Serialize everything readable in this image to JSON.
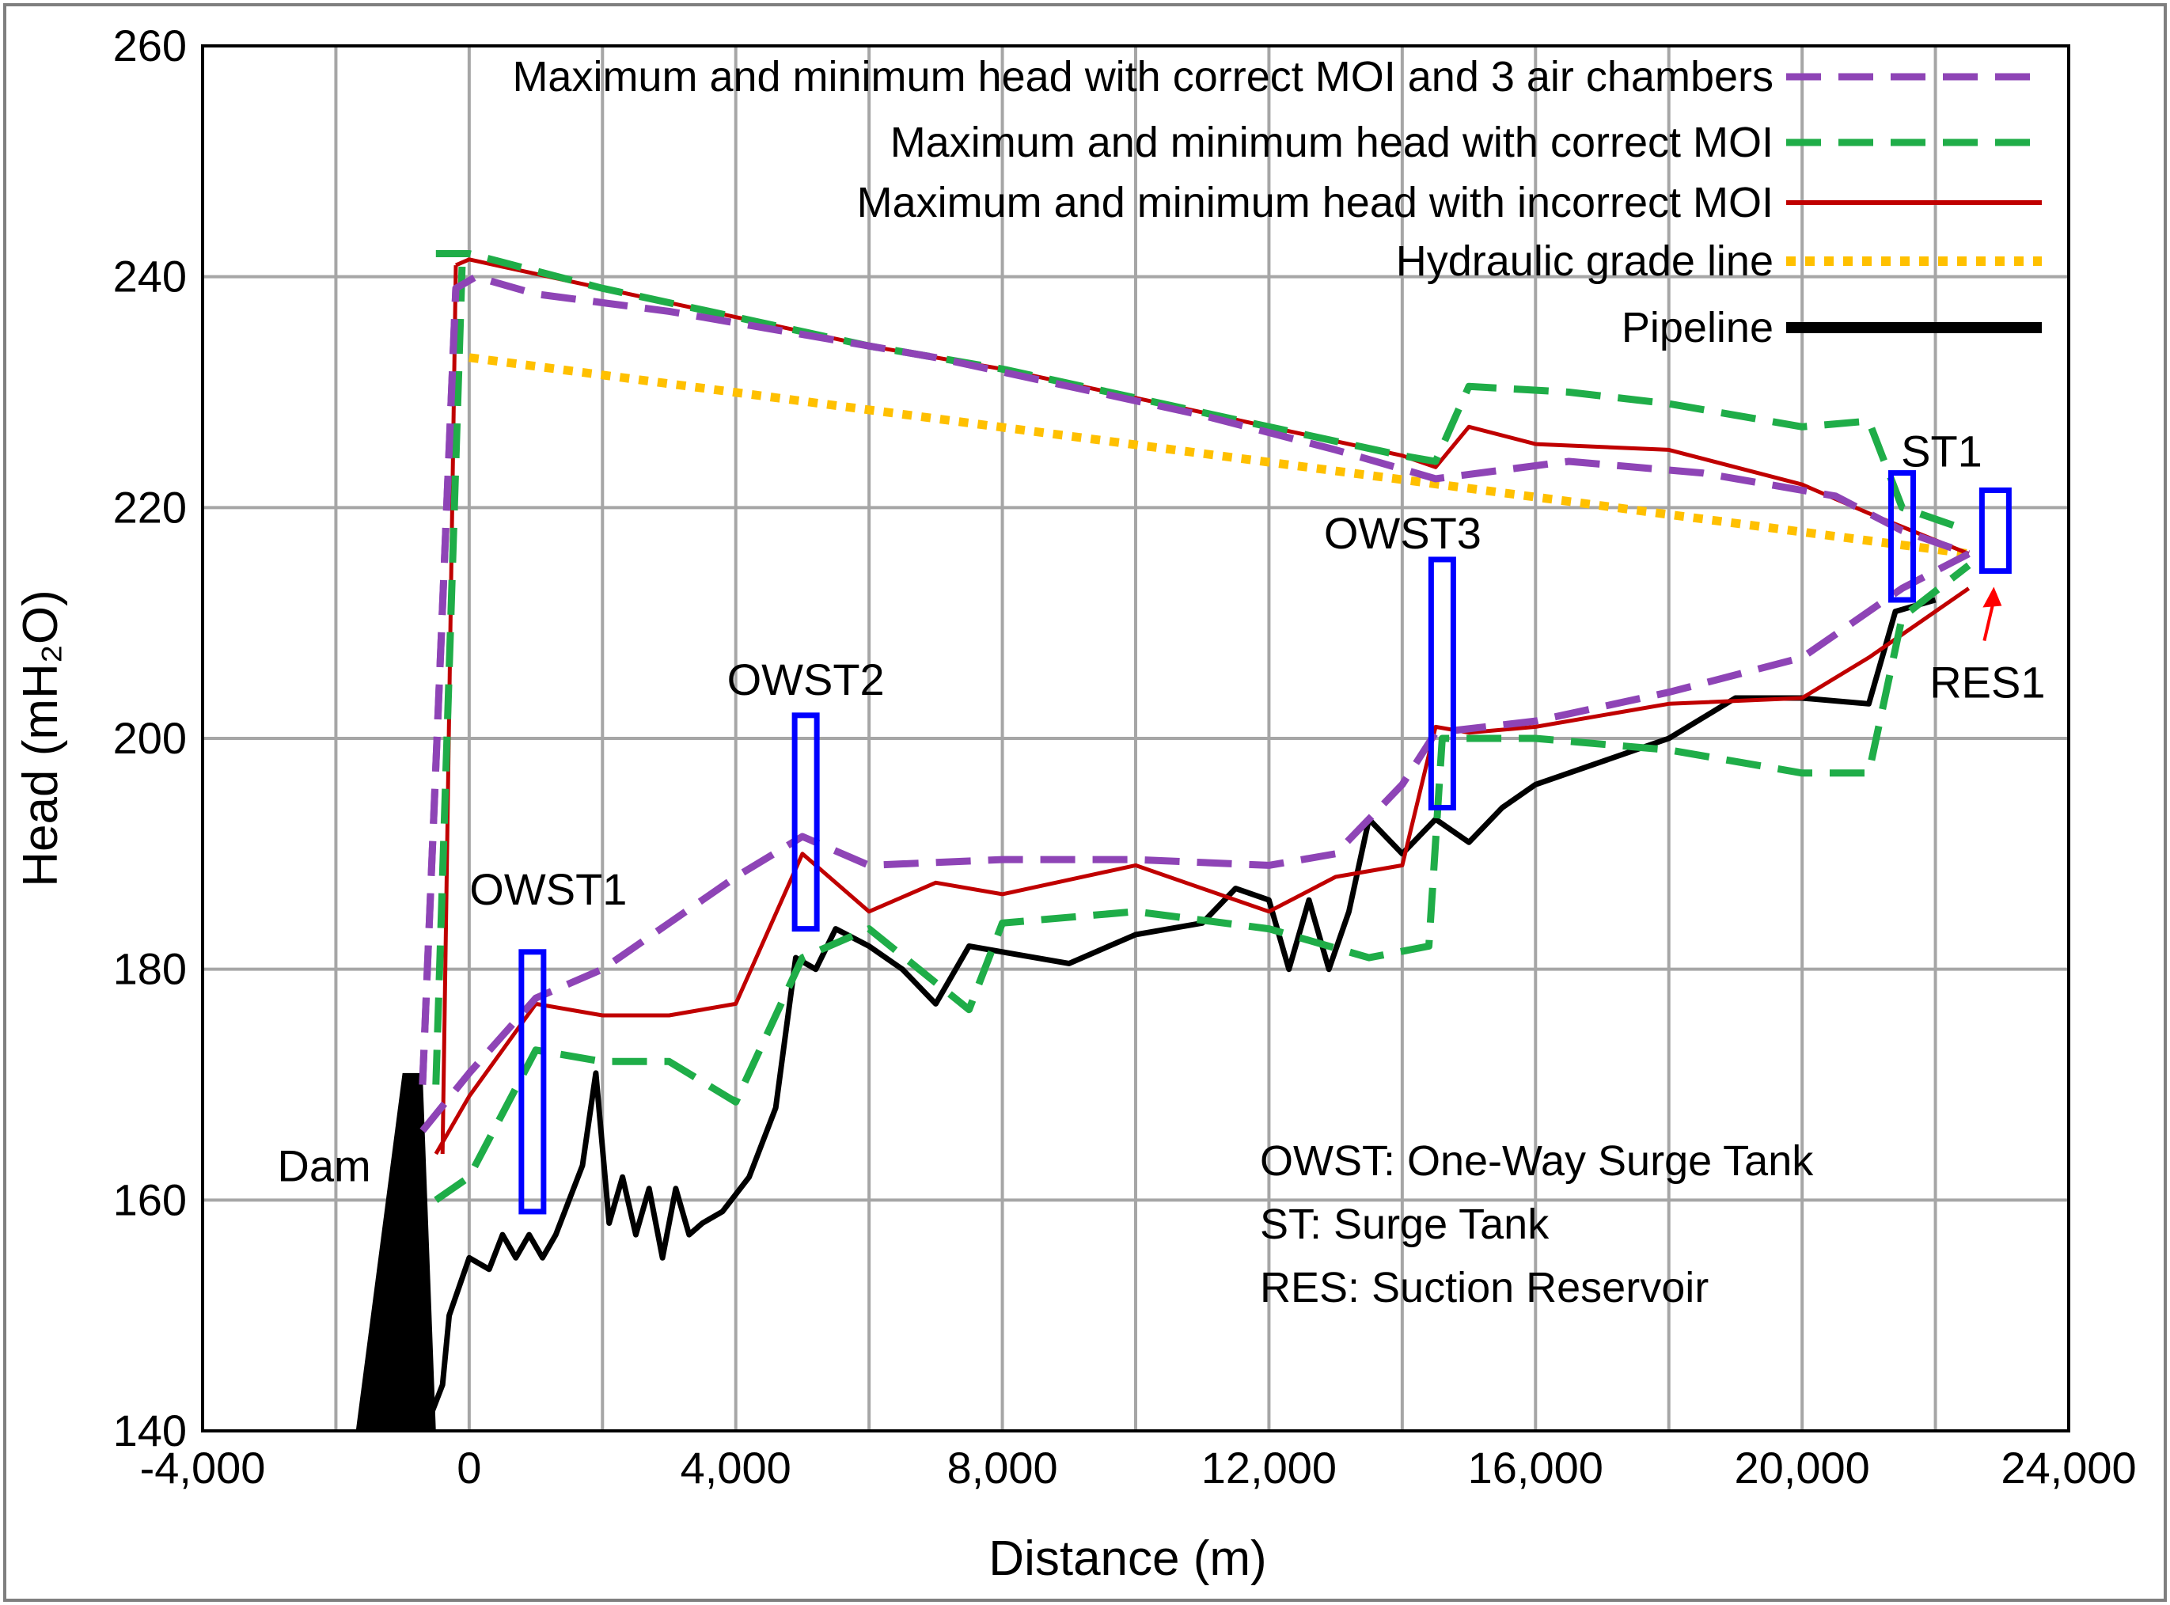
{
  "chart_data": {
    "type": "line",
    "xlabel": "Distance (m)",
    "ylabel": "Head (mH₂O)",
    "xlim": [
      -4000,
      24000
    ],
    "ylim": [
      140,
      260
    ],
    "x_ticks": [
      -4000,
      0,
      4000,
      8000,
      12000,
      16000,
      20000,
      24000
    ],
    "x_tick_labels": [
      "-4,000",
      "0",
      "4,000",
      "8,000",
      "12,000",
      "16,000",
      "20,000",
      "24,000"
    ],
    "x_grid": [
      -2000,
      2000,
      6000,
      10000,
      14000,
      18000,
      22000
    ],
    "y_ticks": [
      140,
      160,
      180,
      200,
      220,
      240,
      260
    ],
    "y_tick_labels": [
      "140",
      "160",
      "180",
      "200",
      "220",
      "240",
      "260"
    ],
    "grid": true,
    "legend_position": "top-right",
    "colors": {
      "air_chambers": "#8e44b6",
      "correct": "#1fad48",
      "incorrect": "#c00000",
      "hgl": "#ffc000",
      "pipeline": "#000000",
      "tanks": "#0000ff",
      "arrow": "#ff0000"
    },
    "series": [
      {
        "name": "Maximum and minimum head with correct MOI and 3 air chambers",
        "color_key": "air_chambers",
        "style": "dashed",
        "max": {
          "x": [
            -700,
            -200,
            100,
            1000,
            3000,
            5000,
            7000,
            9000,
            11000,
            13000,
            14500,
            16500,
            18500,
            20500,
            21500,
            22500
          ],
          "y": [
            170,
            239,
            240,
            238.5,
            237,
            235,
            233,
            230.5,
            228,
            225,
            222.5,
            224,
            223,
            221,
            218,
            216
          ]
        },
        "min": {
          "x": [
            -700,
            0,
            1000,
            2000,
            3000,
            4000,
            5000,
            6000,
            8000,
            10000,
            12000,
            13000,
            14000,
            14500,
            16000,
            18000,
            20000,
            21500,
            22500
          ],
          "y": [
            166,
            171,
            177.5,
            180,
            184,
            188,
            191.5,
            189,
            189.5,
            189.5,
            189,
            190,
            196,
            200.5,
            201.5,
            204,
            207,
            213,
            216
          ]
        },
        "rise": {
          "x": [
            -700,
            -200
          ],
          "y": [
            170,
            239
          ]
        }
      },
      {
        "name": "Maximum and minimum head with correct MOI",
        "color_key": "correct",
        "style": "dashed",
        "max": {
          "x": [
            -500,
            0,
            2000,
            4000,
            6000,
            8000,
            10000,
            12000,
            14000,
            14500,
            15000,
            16500,
            18000,
            20000,
            21000,
            21500,
            22500
          ],
          "y": [
            242,
            242,
            239,
            236.5,
            234,
            232,
            229.5,
            227,
            224.5,
            224,
            230.5,
            230,
            229,
            227,
            227.5,
            220,
            218
          ]
        },
        "min": {
          "x": [
            -500,
            0,
            1000,
            2000,
            3000,
            4000,
            5000,
            6000,
            7500,
            8000,
            10000,
            12000,
            13500,
            14400,
            14600,
            16000,
            18000,
            20000,
            21000,
            21500,
            22500
          ],
          "y": [
            160,
            162,
            173,
            172,
            172,
            168.5,
            181,
            183.5,
            176.5,
            184,
            185,
            183.5,
            181,
            182,
            200,
            200,
            199,
            197,
            197,
            210.5,
            215
          ]
        },
        "rise": {
          "x": [
            -500,
            -100
          ],
          "y": [
            170,
            242
          ]
        }
      },
      {
        "name": "Maximum and minimum head with incorrect MOI",
        "color_key": "incorrect",
        "style": "solid",
        "max": {
          "x": [
            -200,
            0,
            2000,
            4000,
            6000,
            8000,
            10000,
            12000,
            14000,
            14500,
            15000,
            16000,
            18000,
            20000,
            21000,
            22500
          ],
          "y": [
            241,
            241.5,
            239,
            236.5,
            234,
            232,
            229.5,
            227,
            224.5,
            223.5,
            227,
            225.5,
            225,
            222,
            219.5,
            216
          ]
        },
        "min": {
          "x": [
            -500,
            0,
            1000,
            2000,
            3000,
            4000,
            5000,
            6000,
            7000,
            8000,
            10000,
            12000,
            13000,
            14000,
            14500,
            15000,
            16000,
            18000,
            20000,
            21000,
            22500
          ],
          "y": [
            164,
            169,
            177,
            176,
            176,
            177,
            190,
            185,
            187.5,
            186.5,
            189,
            185,
            188,
            189,
            201,
            200.5,
            201,
            203,
            203.5,
            207,
            213
          ]
        },
        "rise": {
          "x": [
            -400,
            -200
          ],
          "y": [
            164,
            241
          ]
        }
      },
      {
        "name": "Hydraulic grade line",
        "color_key": "hgl",
        "style": "dotted",
        "x": [
          0,
          22500
        ],
        "y": [
          233,
          216
        ]
      },
      {
        "name": "Pipeline",
        "color_key": "pipeline",
        "style": "solid",
        "x": [
          -600,
          -400,
          -300,
          0,
          300,
          500,
          700,
          900,
          1100,
          1300,
          1500,
          1700,
          1900,
          2100,
          2300,
          2500,
          2700,
          2900,
          3100,
          3300,
          3500,
          3800,
          4200,
          4600,
          4900,
          5200,
          5500,
          6000,
          6500,
          7000,
          7500,
          8000,
          9000,
          10000,
          11000,
          11500,
          12000,
          12300,
          12600,
          12900,
          13200,
          13500,
          14000,
          14500,
          15000,
          15500,
          16000,
          17000,
          18000,
          19000,
          20000,
          21000,
          21400,
          22000
        ],
        "y": [
          141,
          144,
          150,
          155,
          154,
          157,
          155,
          157,
          155,
          157,
          160,
          163,
          171,
          158,
          162,
          157,
          161,
          155,
          161,
          157,
          158,
          159,
          162,
          168,
          181,
          180,
          183.5,
          182,
          180,
          177,
          182,
          181.5,
          180.5,
          183,
          184,
          187,
          186,
          180,
          186,
          180,
          185,
          193,
          190,
          193,
          191,
          194,
          196,
          198,
          200,
          203.5,
          203.5,
          203,
          211,
          212
        ]
      }
    ],
    "dam": {
      "label": "Dam",
      "x_base_left": -1700,
      "x_base_right": -500,
      "x_top_left": -1000,
      "x_top_right": -700,
      "y_top": 171
    },
    "tanks": [
      {
        "label": "OWST1",
        "x": 950,
        "y_bottom": 159,
        "y_top": 181.5
      },
      {
        "label": "OWST2",
        "x": 5050,
        "y_bottom": 183.5,
        "y_top": 202
      },
      {
        "label": "OWST3",
        "x": 14600,
        "y_bottom": 194,
        "y_top": 215.5
      },
      {
        "label": "ST1",
        "x": 21500,
        "y_bottom": 212,
        "y_top": 223
      },
      {
        "label": "RES1",
        "x": 22900,
        "y_bottom": 214.5,
        "y_top": 221.5
      }
    ],
    "notes": [
      "OWST: One-Way Surge Tank",
      "ST: Surge Tank",
      "RES: Suction Reservoir"
    ]
  }
}
